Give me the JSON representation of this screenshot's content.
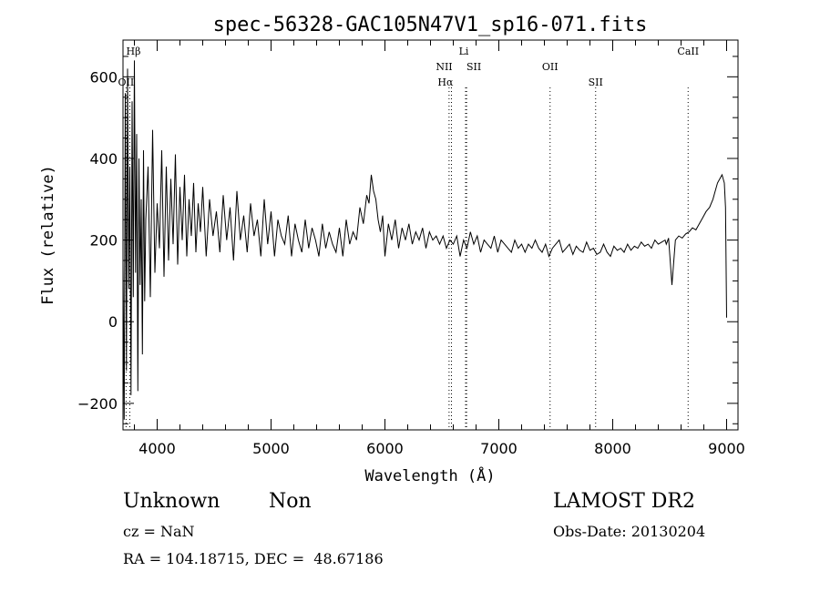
{
  "chart_data": {
    "type": "line",
    "title": "spec-56328-GAC105N47V1_sp16-071.fits",
    "xlabel": "Wavelength (Å)",
    "ylabel": "Flux (relative)",
    "xlim": [
      3700,
      9100
    ],
    "ylim": [
      -265,
      690
    ],
    "xticks": [
      4000,
      5000,
      6000,
      7000,
      8000,
      9000
    ],
    "yticks": [
      -200,
      0,
      200,
      400,
      600
    ],
    "grid": false,
    "series_color": "#000000",
    "lines": [
      {
        "label": "Hβ",
        "x": 3760
      },
      {
        "label": "OII",
        "x": 3727
      },
      {
        "label": "Hα",
        "x": 6563
      },
      {
        "label": "NII",
        "x": 6584
      },
      {
        "label": "SII",
        "x": 6717
      },
      {
        "label": "Li",
        "x": 6708
      },
      {
        "label": "OII",
        "x": 7450
      },
      {
        "label": "SII",
        "x": 7850
      },
      {
        "label": "CaII",
        "x": 8662
      }
    ],
    "series": [
      {
        "x": [
          3700,
          3710,
          3720,
          3730,
          3740,
          3750,
          3760,
          3770,
          3780,
          3790,
          3800,
          3810,
          3820,
          3830,
          3840,
          3850,
          3860,
          3870,
          3880,
          3890,
          3900,
          3920,
          3940,
          3960,
          3980,
          4000,
          4020,
          4040,
          4060,
          4080,
          4100,
          4120,
          4140,
          4160,
          4180,
          4200,
          4220,
          4240,
          4260,
          4280,
          4300,
          4320,
          4340,
          4360,
          4380,
          4400,
          4430,
          4460,
          4490,
          4520,
          4550,
          4580,
          4610,
          4640,
          4670,
          4700,
          4730,
          4760,
          4790,
          4820,
          4850,
          4880,
          4910,
          4940,
          4970,
          5000,
          5030,
          5060,
          5090,
          5120,
          5150,
          5180,
          5210,
          5240,
          5270,
          5300,
          5330,
          5360,
          5390,
          5420,
          5450,
          5480,
          5510,
          5540,
          5570,
          5600,
          5630,
          5660,
          5690,
          5720,
          5750,
          5780,
          5810,
          5840,
          5860,
          5880,
          5900,
          5920,
          5940,
          5960,
          5980,
          6000,
          6030,
          6060,
          6090,
          6120,
          6150,
          6180,
          6210,
          6240,
          6270,
          6300,
          6330,
          6360,
          6390,
          6420,
          6450,
          6480,
          6510,
          6540,
          6570,
          6600,
          6630,
          6660,
          6690,
          6720,
          6750,
          6780,
          6810,
          6840,
          6870,
          6900,
          6930,
          6960,
          6990,
          7020,
          7050,
          7080,
          7110,
          7140,
          7170,
          7200,
          7230,
          7260,
          7290,
          7320,
          7350,
          7380,
          7410,
          7440,
          7470,
          7500,
          7530,
          7560,
          7590,
          7620,
          7650,
          7680,
          7710,
          7740,
          7770,
          7800,
          7830,
          7860,
          7890,
          7920,
          7950,
          7980,
          8010,
          8040,
          8070,
          8100,
          8130,
          8160,
          8190,
          8220,
          8250,
          8280,
          8310,
          8340,
          8370,
          8400,
          8430,
          8460,
          8470,
          8490,
          8520,
          8550,
          8580,
          8610,
          8640,
          8670,
          8700,
          8730,
          8760,
          8790,
          8820,
          8850,
          8880,
          8900,
          8920,
          8940,
          8960,
          8980,
          8990,
          9000
        ],
        "values": [
          150,
          -240,
          560,
          -120,
          620,
          80,
          380,
          -180,
          540,
          60,
          640,
          120,
          460,
          -170,
          400,
          90,
          300,
          -80,
          420,
          50,
          250,
          380,
          60,
          470,
          120,
          290,
          180,
          420,
          110,
          380,
          150,
          350,
          190,
          410,
          140,
          330,
          200,
          360,
          160,
          300,
          210,
          340,
          170,
          290,
          220,
          330,
          160,
          300,
          210,
          270,
          170,
          310,
          200,
          280,
          150,
          320,
          200,
          260,
          170,
          290,
          210,
          250,
          160,
          300,
          190,
          270,
          160,
          250,
          210,
          190,
          260,
          160,
          240,
          200,
          170,
          250,
          180,
          230,
          200,
          160,
          240,
          180,
          220,
          190,
          170,
          230,
          160,
          250,
          190,
          220,
          200,
          280,
          240,
          310,
          290,
          360,
          320,
          300,
          250,
          220,
          260,
          160,
          240,
          200,
          250,
          180,
          230,
          200,
          240,
          190,
          220,
          200,
          230,
          180,
          220,
          200,
          210,
          190,
          210,
          180,
          200,
          190,
          210,
          160,
          200,
          180,
          220,
          190,
          210,
          170,
          200,
          190,
          180,
          210,
          170,
          200,
          190,
          180,
          170,
          200,
          180,
          190,
          170,
          190,
          180,
          200,
          180,
          170,
          190,
          160,
          180,
          190,
          200,
          170,
          180,
          190,
          165,
          185,
          175,
          170,
          195,
          175,
          180,
          165,
          170,
          190,
          170,
          160,
          185,
          175,
          180,
          170,
          190,
          175,
          185,
          180,
          195,
          185,
          190,
          180,
          200,
          190,
          195,
          200,
          190,
          205,
          90,
          200,
          210,
          205,
          215,
          220,
          230,
          225,
          240,
          255,
          270,
          280,
          300,
          320,
          340,
          350,
          360,
          340,
          280,
          10
        ]
      }
    ]
  },
  "footer": {
    "object_class": "Unknown",
    "object_subclass": "Non",
    "survey": "LAMOST DR2",
    "cz": "cz = NaN",
    "obs_date": "Obs-Date: 20130204",
    "coords": "RA = 104.18715, DEC =  48.67186"
  }
}
